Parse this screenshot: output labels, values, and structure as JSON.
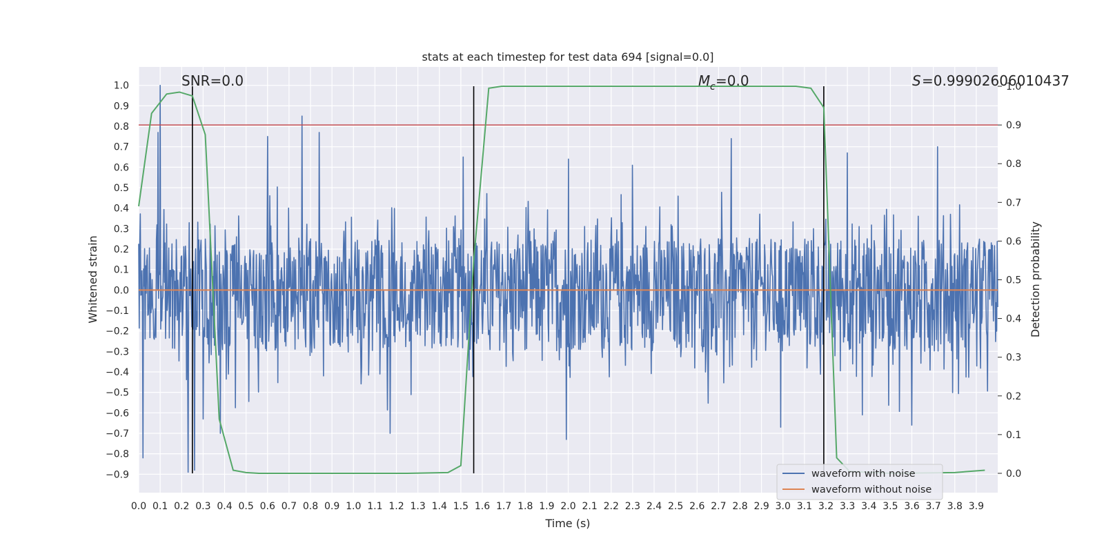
{
  "chart_data": {
    "type": "line",
    "title": "stats at each timestep for test data 694 [signal=0.0]",
    "xlabel": "Time (s)",
    "ylabel_left": "Whitened strain",
    "ylabel_right": "Detection probability",
    "xlim": [
      0.0,
      4.0
    ],
    "ylim_left": [
      -0.99,
      1.09
    ],
    "ylim_right": [
      -0.05,
      1.05
    ],
    "x_ticks": [
      "0.0",
      "0.1",
      "0.2",
      "0.3",
      "0.4",
      "0.5",
      "0.6",
      "0.7",
      "0.8",
      "0.9",
      "1.0",
      "1.1",
      "1.2",
      "1.3",
      "1.4",
      "1.5",
      "1.6",
      "1.7",
      "1.8",
      "1.9",
      "2.0",
      "2.1",
      "2.2",
      "2.3",
      "2.4",
      "2.5",
      "2.6",
      "2.7",
      "2.8",
      "2.9",
      "3.0",
      "3.1",
      "3.2",
      "3.3",
      "3.4",
      "3.5",
      "3.6",
      "3.7",
      "3.8",
      "3.9"
    ],
    "y_ticks_left": [
      "1.0",
      "0.9",
      "0.8",
      "0.7",
      "0.6",
      "0.5",
      "0.4",
      "0.3",
      "0.2",
      "0.1",
      "0.0",
      "−0.1",
      "−0.2",
      "−0.3",
      "−0.4",
      "−0.5",
      "−0.6",
      "−0.7",
      "−0.8",
      "−0.9"
    ],
    "y_ticks_right": [
      "1.0",
      "0.9",
      "0.8",
      "0.7",
      "0.6",
      "0.5",
      "0.4",
      "0.3",
      "0.2",
      "0.1",
      "0.0"
    ],
    "grid": true,
    "legend_position": "bottom-right",
    "series": [
      {
        "name": "waveform with noise",
        "color": "#4c72b0",
        "axis": "left",
        "x_range": [
          0.0,
          4.0
        ],
        "envelope": {
          "typical_positive": 0.3,
          "typical_negative": -0.35,
          "peaks": [
            {
              "x": 0.02,
              "y": 0.73
            },
            {
              "x": 0.02,
              "y": -0.82
            },
            {
              "x": 0.1,
              "y": 1.0
            },
            {
              "x": 0.09,
              "y": 0.77
            },
            {
              "x": 0.23,
              "y": -0.89
            },
            {
              "x": 0.26,
              "y": -0.88
            },
            {
              "x": 0.3,
              "y": -0.63
            },
            {
              "x": 0.38,
              "y": -0.7
            },
            {
              "x": 0.6,
              "y": 0.75
            },
            {
              "x": 0.76,
              "y": 0.85
            },
            {
              "x": 0.84,
              "y": 0.77
            },
            {
              "x": 1.17,
              "y": -0.7
            },
            {
              "x": 1.51,
              "y": 0.65
            },
            {
              "x": 1.99,
              "y": -0.73
            },
            {
              "x": 2.0,
              "y": 0.64
            },
            {
              "x": 2.3,
              "y": 0.61
            },
            {
              "x": 2.76,
              "y": 0.74
            },
            {
              "x": 2.99,
              "y": -0.67
            },
            {
              "x": 3.3,
              "y": 0.67
            },
            {
              "x": 3.37,
              "y": -0.61
            },
            {
              "x": 3.72,
              "y": 0.7
            },
            {
              "x": 3.6,
              "y": -0.66
            }
          ]
        }
      },
      {
        "name": "waveform without noise",
        "color": "#dd8452",
        "axis": "left",
        "x": [
          0.0,
          4.0
        ],
        "y": [
          0.0,
          0.0
        ]
      },
      {
        "name": "",
        "color": "#55a868",
        "axis": "right",
        "x": [
          0.0,
          0.06,
          0.13,
          0.19,
          0.25,
          0.31,
          0.375,
          0.44,
          0.5,
          0.56,
          0.75,
          1.0,
          1.25,
          1.44,
          1.5,
          1.56,
          1.63,
          1.69,
          2.0,
          2.5,
          3.0,
          3.06,
          3.13,
          3.19,
          3.25,
          3.31,
          3.5,
          3.8,
          3.94
        ],
        "y": [
          0.69,
          0.93,
          0.98,
          0.985,
          0.975,
          0.875,
          0.14,
          0.008,
          0.002,
          0.0,
          0.0,
          0.0,
          0.0,
          0.002,
          0.02,
          0.55,
          0.995,
          1.0,
          1.0,
          1.0,
          1.0,
          1.0,
          0.995,
          0.945,
          0.04,
          0.005,
          0.0,
          0.002,
          0.008
        ]
      }
    ],
    "threshold": {
      "color": "#c44e52",
      "axis": "right",
      "y": 0.9
    },
    "vlines_x": [
      0.25,
      1.56,
      3.19
    ],
    "annotations": [
      "SNR=0.0",
      "=0.0",
      "=0.99902606010437"
    ]
  }
}
